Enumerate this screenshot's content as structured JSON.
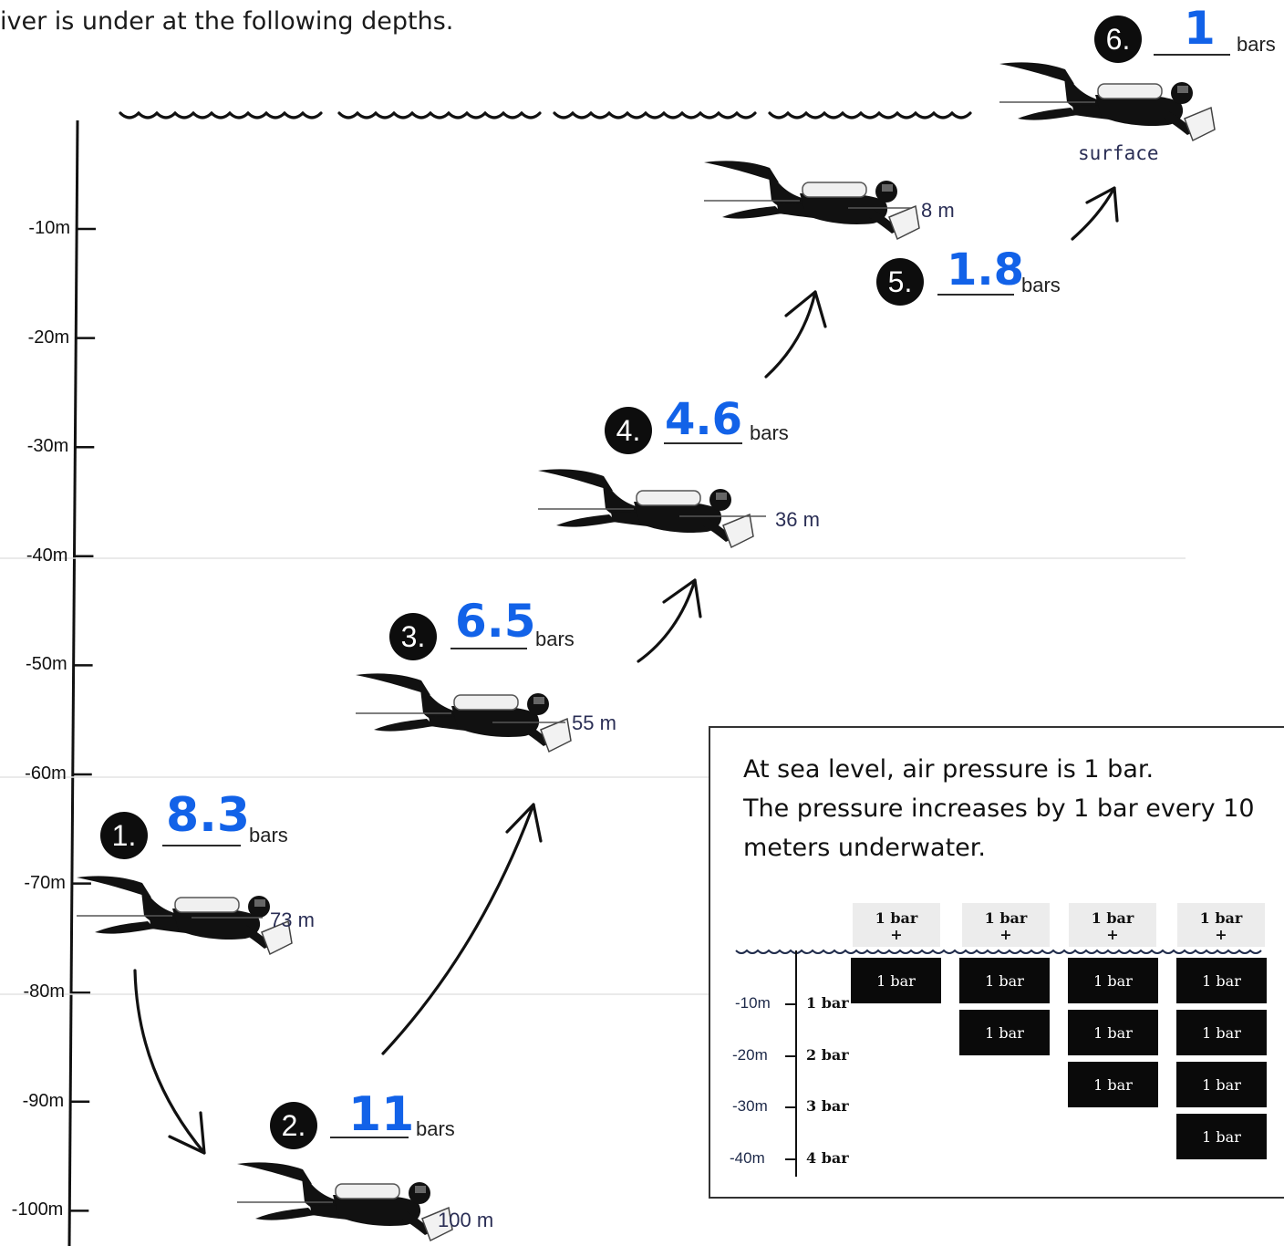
{
  "instruction": "iver is under at the following depths.",
  "depth_axis": [
    "-10m",
    "-20m",
    "-30m",
    "-40m",
    "-50m",
    "-60m",
    "-70m",
    "-80m",
    "-90m",
    "-100m"
  ],
  "divers": [
    {
      "number": "1.",
      "answer": "8.3",
      "unit": "bars",
      "depth": "73 m"
    },
    {
      "number": "2.",
      "answer": "11",
      "unit": "bars",
      "depth": "100 m"
    },
    {
      "number": "3.",
      "answer": "6.5",
      "unit": "bars",
      "depth": "55 m"
    },
    {
      "number": "4.",
      "answer": "4.6",
      "unit": "bars",
      "depth": "36 m"
    },
    {
      "number": "5.",
      "answer": "1.8",
      "unit": "bars",
      "depth": "8 m"
    },
    {
      "number": "6.",
      "answer": "1",
      "unit": "bars",
      "depth": "surface"
    }
  ],
  "info_box": {
    "lines": [
      "At sea level, air pressure is 1 bar.",
      "The pressure increases by 1 bar every 10",
      "meters underwater."
    ],
    "column_header": "1 bar",
    "column_header_plus": "+",
    "block_label": "1 bar",
    "mini_depths": [
      "-10m",
      "-20m",
      "-30m",
      "-40m"
    ],
    "mini_bars": [
      "1 bar",
      "2 bar",
      "3 bar",
      "4 bar"
    ]
  },
  "colors": {
    "answer": "#1262e8",
    "circle": "#0d0d0d",
    "block": "#0a0a0a"
  },
  "icons": [
    "scuba-diver-icon",
    "arrow-icon",
    "wave-icon"
  ]
}
